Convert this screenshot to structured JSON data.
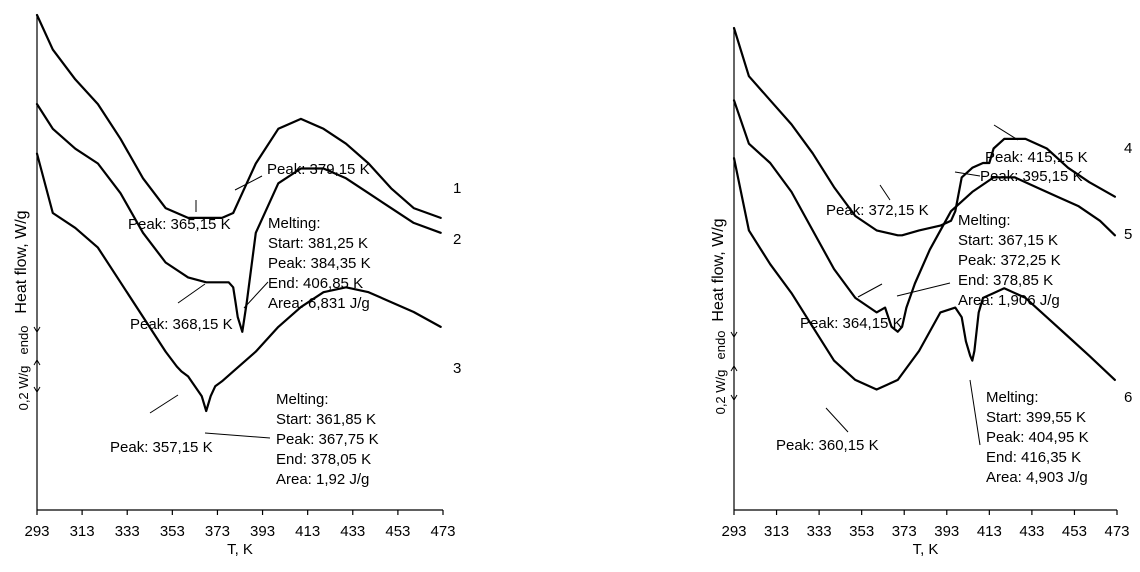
{
  "chart_data": [
    {
      "type": "line",
      "panel": "left",
      "xlabel": "T, K",
      "ylabel": "Heat flow, W/g",
      "xlim": [
        293,
        473
      ],
      "x_ticks": [
        "293",
        "313",
        "333",
        "353",
        "373",
        "393",
        "413",
        "433",
        "453",
        "473"
      ],
      "grid": false,
      "legend": "none",
      "direction_label": "endo",
      "scale_label": "0,2 W/g",
      "series": [
        {
          "name": "1",
          "x": [
            293,
            300,
            310,
            320,
            330,
            340,
            350,
            360,
            365,
            370,
            375,
            380,
            383,
            390,
            400,
            410,
            420,
            430,
            440,
            450,
            460,
            472
          ],
          "y": [
            1.0,
            0.93,
            0.87,
            0.82,
            0.75,
            0.67,
            0.61,
            0.59,
            0.59,
            0.59,
            0.59,
            0.6,
            0.63,
            0.7,
            0.77,
            0.79,
            0.77,
            0.74,
            0.7,
            0.65,
            0.61,
            0.59
          ]
        },
        {
          "name": "2",
          "x": [
            293,
            300,
            310,
            320,
            330,
            340,
            350,
            360,
            368,
            375,
            378,
            380,
            381,
            382,
            384,
            386,
            390,
            400,
            410,
            420,
            430,
            440,
            450,
            460,
            472
          ],
          "y": [
            0.82,
            0.77,
            0.73,
            0.7,
            0.64,
            0.56,
            0.5,
            0.47,
            0.46,
            0.46,
            0.46,
            0.45,
            0.42,
            0.39,
            0.36,
            0.42,
            0.56,
            0.66,
            0.69,
            0.69,
            0.67,
            0.64,
            0.61,
            0.58,
            0.56
          ]
        },
        {
          "name": "3",
          "x": [
            293,
            300,
            310,
            320,
            330,
            340,
            350,
            355,
            357,
            360,
            363,
            366,
            368,
            370,
            372,
            375,
            380,
            390,
            400,
            410,
            420,
            430,
            440,
            450,
            460,
            472
          ],
          "y": [
            0.72,
            0.6,
            0.57,
            0.53,
            0.46,
            0.39,
            0.32,
            0.29,
            0.28,
            0.27,
            0.25,
            0.23,
            0.2,
            0.23,
            0.25,
            0.26,
            0.28,
            0.32,
            0.37,
            0.41,
            0.44,
            0.45,
            0.44,
            0.42,
            0.4,
            0.37
          ]
        }
      ],
      "annotations": [
        {
          "series": "1",
          "lines": [
            "Peak: 379,15 K"
          ]
        },
        {
          "series": "1",
          "lines": [
            "Peak: 365,15 K"
          ]
        },
        {
          "series": "2",
          "lines": [
            "Peak: 368,15 K"
          ]
        },
        {
          "series": "2",
          "lines": [
            "Melting:",
            "Start: 381,25 K",
            "Peak: 384,35 K",
            "End: 406,85 K",
            "Area: 6,831 J/g"
          ]
        },
        {
          "series": "3",
          "lines": [
            "Peak: 357,15 K"
          ]
        },
        {
          "series": "3",
          "lines": [
            "Melting:",
            "Start: 361,85 K",
            "Peak: 367,75 K",
            "End: 378,05 K",
            "Area: 1,92 J/g"
          ]
        }
      ]
    },
    {
      "type": "line",
      "panel": "right",
      "xlabel": "T, K",
      "ylabel": "Heat flow, W/g",
      "xlim": [
        293,
        473
      ],
      "x_ticks": [
        "293",
        "313",
        "333",
        "353",
        "373",
        "393",
        "413",
        "433",
        "453",
        "473"
      ],
      "grid": false,
      "legend": "none",
      "direction_label": "endo",
      "scale_label": "0,2 W/g",
      "series": [
        {
          "name": "4",
          "x": [
            293,
            300,
            310,
            320,
            330,
            340,
            350,
            360,
            370,
            372,
            380,
            390,
            395,
            397,
            400,
            405,
            410,
            413,
            415,
            420,
            430,
            440,
            450,
            460,
            472
          ],
          "y": [
            1.0,
            0.9,
            0.85,
            0.8,
            0.74,
            0.67,
            0.61,
            0.58,
            0.57,
            0.57,
            0.58,
            0.59,
            0.6,
            0.62,
            0.69,
            0.71,
            0.72,
            0.72,
            0.75,
            0.77,
            0.77,
            0.75,
            0.71,
            0.68,
            0.65
          ]
        },
        {
          "name": "5",
          "x": [
            293,
            300,
            310,
            320,
            330,
            340,
            350,
            360,
            364,
            367,
            370,
            372,
            374,
            378,
            385,
            395,
            405,
            415,
            425,
            435,
            445,
            455,
            465,
            472
          ],
          "y": [
            0.85,
            0.76,
            0.72,
            0.66,
            0.58,
            0.5,
            0.44,
            0.41,
            0.42,
            0.38,
            0.37,
            0.38,
            0.42,
            0.47,
            0.54,
            0.62,
            0.66,
            0.69,
            0.69,
            0.67,
            0.65,
            0.63,
            0.6,
            0.57
          ]
        },
        {
          "name": "6",
          "x": [
            293,
            300,
            310,
            320,
            330,
            340,
            350,
            360,
            365,
            370,
            380,
            390,
            397,
            400,
            402,
            404,
            405,
            406,
            408,
            410,
            415,
            420,
            430,
            440,
            450,
            460,
            472
          ],
          "y": [
            0.73,
            0.58,
            0.51,
            0.45,
            0.38,
            0.31,
            0.27,
            0.25,
            0.26,
            0.27,
            0.33,
            0.41,
            0.42,
            0.4,
            0.35,
            0.32,
            0.31,
            0.33,
            0.41,
            0.44,
            0.45,
            0.46,
            0.44,
            0.4,
            0.36,
            0.32,
            0.27
          ]
        }
      ],
      "annotations": [
        {
          "series": "4",
          "lines": [
            "Peak: 415,15 K"
          ]
        },
        {
          "series": "4",
          "lines": [
            "Peak: 395,15 K"
          ]
        },
        {
          "series": "4",
          "lines": [
            "Peak: 372,15 K"
          ]
        },
        {
          "series": "5",
          "lines": [
            "Peak: 364,15 K"
          ]
        },
        {
          "series": "5",
          "lines": [
            "Melting:",
            "Start: 367,15 K",
            "Peak: 372,25 K",
            "End: 378,85 K",
            "Area: 1,906 J/g"
          ]
        },
        {
          "series": "6",
          "lines": [
            "Peak: 360,15 K"
          ]
        },
        {
          "series": "6",
          "lines": [
            "Melting:",
            "Start: 399,55 K",
            "Peak: 404,95 K",
            "End: 416,35 K",
            "Area: 4,903 J/g"
          ]
        }
      ]
    }
  ]
}
